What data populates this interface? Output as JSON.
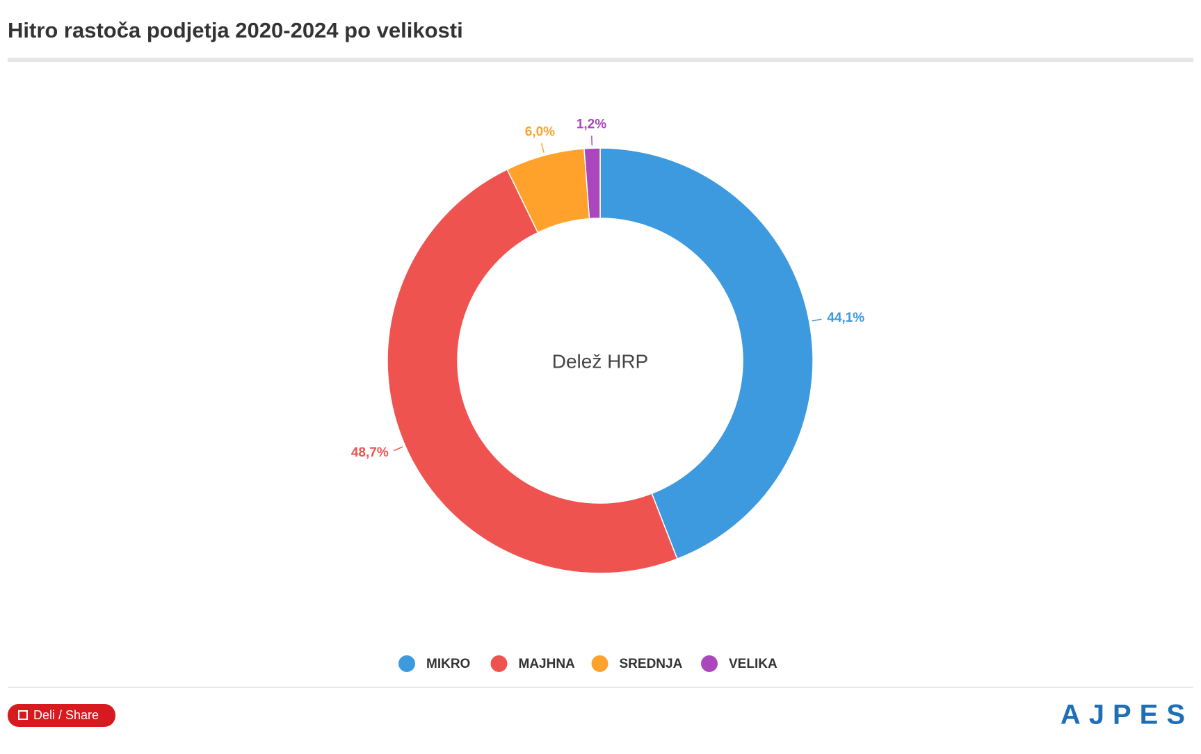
{
  "chart_data": {
    "type": "donut",
    "title": "Hitro rastoča podjetja 2020-2024 po velikosti",
    "center_label": "Delež HRP",
    "categories": [
      "MIKRO",
      "MAJHNA",
      "SREDNJA",
      "VELIKA"
    ],
    "values": [
      44.1,
      48.7,
      6.0,
      1.2
    ],
    "value_labels": [
      "44,1%",
      "48,7%",
      "6,0%",
      "1,2%"
    ],
    "colors": [
      "#3d9ade",
      "#ef5350",
      "#ffa22b",
      "#ab47bc"
    ],
    "legend": "bottom"
  },
  "footer": {
    "share_button": "Deli / Share",
    "logo": "AJPES"
  }
}
